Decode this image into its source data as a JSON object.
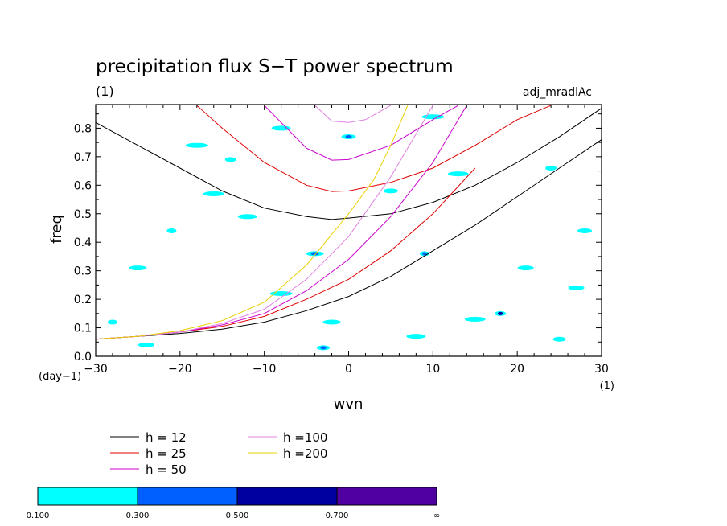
{
  "chart_data": {
    "type": "contour",
    "title": "precipitation flux S−T power spectrum",
    "subtitle_left": "(1)",
    "subtitle_right": "adj_mradlAc",
    "xlabel": "wvn",
    "ylabel": "freq",
    "x_unit": "(1)",
    "y_unit": "(day−1)",
    "xlim": [
      -30,
      30
    ],
    "ylim": [
      0,
      0.883
    ],
    "x_ticks": [
      -30,
      -20,
      -10,
      0,
      10,
      20,
      30
    ],
    "x_tick_labels": [
      "−30",
      "−20",
      "−10",
      "0",
      "10",
      "20",
      "30"
    ],
    "y_ticks": [
      0.0,
      0.1,
      0.2,
      0.3,
      0.4,
      0.5,
      0.6,
      0.7,
      0.8
    ],
    "y_tick_labels": [
      "0.0",
      "0.1",
      "0.2",
      "0.3",
      "0.4",
      "0.5",
      "0.6",
      "0.7",
      "0.8"
    ],
    "legend": [
      {
        "label": "h = 12",
        "color": "#000000"
      },
      {
        "label": "h = 25",
        "color": "#e00000"
      },
      {
        "label": "h = 50",
        "color": "#cc00cc"
      },
      {
        "label": "h =100",
        "color": "#e080e0"
      },
      {
        "label": "h =200",
        "color": "#e8d000"
      }
    ],
    "series": [
      {
        "name": "h = 12",
        "color": "#000000",
        "kelvin_x": [
          -30,
          -25,
          -20,
          -15,
          -10,
          -5,
          0,
          5,
          10,
          15,
          20,
          25,
          30
        ],
        "kelvin_y": [
          0.06,
          0.07,
          0.08,
          0.095,
          0.12,
          0.16,
          0.21,
          0.28,
          0.37,
          0.46,
          0.56,
          0.66,
          0.76
        ],
        "inertia_x": [
          -30,
          -25,
          -20,
          -15,
          -10,
          -5,
          -2,
          0,
          5,
          10,
          15,
          20,
          25,
          30
        ],
        "inertia_y": [
          0.82,
          0.74,
          0.66,
          0.58,
          0.52,
          0.49,
          0.48,
          0.485,
          0.5,
          0.54,
          0.6,
          0.68,
          0.77,
          0.87
        ]
      },
      {
        "name": "h = 25",
        "color": "#e00000",
        "kelvin_x": [
          -30,
          -25,
          -20,
          -15,
          -10,
          -5,
          0,
          5,
          10,
          15
        ],
        "kelvin_y": [
          0.06,
          0.07,
          0.085,
          0.105,
          0.14,
          0.2,
          0.27,
          0.37,
          0.5,
          0.66
        ],
        "inertia_x": [
          -18,
          -15,
          -10,
          -5,
          -2,
          0,
          5,
          10,
          15,
          20,
          24
        ],
        "inertia_y": [
          0.88,
          0.8,
          0.68,
          0.6,
          0.578,
          0.58,
          0.61,
          0.66,
          0.74,
          0.83,
          0.88
        ]
      },
      {
        "name": "h = 50",
        "color": "#cc00cc",
        "kelvin_x": [
          -30,
          -25,
          -20,
          -15,
          -10,
          -5,
          0,
          5,
          10,
          14
        ],
        "kelvin_y": [
          0.06,
          0.07,
          0.085,
          0.11,
          0.15,
          0.23,
          0.34,
          0.49,
          0.68,
          0.88
        ],
        "inertia_x": [
          -10,
          -5,
          -2,
          0,
          5,
          10,
          13
        ],
        "inertia_y": [
          0.88,
          0.73,
          0.688,
          0.69,
          0.74,
          0.83,
          0.88
        ]
      },
      {
        "name": "h =100",
        "color": "#e080e0",
        "kelvin_x": [
          -30,
          -25,
          -20,
          -15,
          -10,
          -5,
          0,
          5,
          10
        ],
        "kelvin_y": [
          0.06,
          0.07,
          0.085,
          0.115,
          0.165,
          0.27,
          0.42,
          0.63,
          0.88
        ],
        "inertia_x": [
          -4,
          -2,
          0,
          2,
          5
        ],
        "inertia_y": [
          0.88,
          0.825,
          0.82,
          0.83,
          0.88
        ]
      },
      {
        "name": "h =200",
        "color": "#e8d000",
        "kelvin_x": [
          -30,
          -25,
          -20,
          -15,
          -10,
          -5,
          0,
          3,
          5,
          7
        ],
        "kelvin_y": [
          0.06,
          0.07,
          0.09,
          0.125,
          0.19,
          0.32,
          0.5,
          0.62,
          0.74,
          0.88
        ]
      }
    ],
    "shading_levels": [
      0.1,
      0.3,
      0.5,
      0.7
    ],
    "colorbar": {
      "colors": [
        "#00ffff",
        "#0060ff",
        "#0000a0",
        "#5000a0"
      ],
      "labels": [
        "0.100",
        "0.300",
        "0.500",
        "0.700",
        "∞"
      ]
    },
    "contours": [
      {
        "x": 9,
        "y": 0.36,
        "level": 0.3
      },
      {
        "x": -16,
        "y": 0.57,
        "level": 0.1
      },
      {
        "x": -4,
        "y": 0.36,
        "level": 0.3
      },
      {
        "x": 0,
        "y": 0.77,
        "level": 0.3
      },
      {
        "x": 18,
        "y": 0.15,
        "level": 0.5
      },
      {
        "x": -8,
        "y": 0.22,
        "level": 0.1
      },
      {
        "x": -12,
        "y": 0.49,
        "level": 0.1
      },
      {
        "x": 21,
        "y": 0.31,
        "level": 0.1
      },
      {
        "x": -3,
        "y": 0.03,
        "level": 0.3
      },
      {
        "x": -21,
        "y": 0.44,
        "level": 0.1
      },
      {
        "x": 13,
        "y": 0.64,
        "level": 0.1
      },
      {
        "x": -25,
        "y": 0.31,
        "level": 0.1
      },
      {
        "x": 5,
        "y": 0.58,
        "level": 0.1
      },
      {
        "x": 24,
        "y": 0.66,
        "level": 0.1
      },
      {
        "x": -18,
        "y": 0.74,
        "level": 0.1
      },
      {
        "x": 8,
        "y": 0.07,
        "level": 0.1
      },
      {
        "x": -24,
        "y": 0.04,
        "level": 0.1
      },
      {
        "x": 25,
        "y": 0.06,
        "level": 0.1
      },
      {
        "x": -28,
        "y": 0.12,
        "level": 0.1
      },
      {
        "x": 15,
        "y": 0.13,
        "level": 0.1
      },
      {
        "x": -2,
        "y": 0.12,
        "level": 0.1
      },
      {
        "x": 28,
        "y": 0.44,
        "level": 0.1
      },
      {
        "x": -14,
        "y": 0.69,
        "level": 0.1
      },
      {
        "x": 10,
        "y": 0.84,
        "level": 0.1
      },
      {
        "x": -8,
        "y": 0.8,
        "level": 0.1
      },
      {
        "x": 27,
        "y": 0.24,
        "level": 0.1
      }
    ]
  }
}
